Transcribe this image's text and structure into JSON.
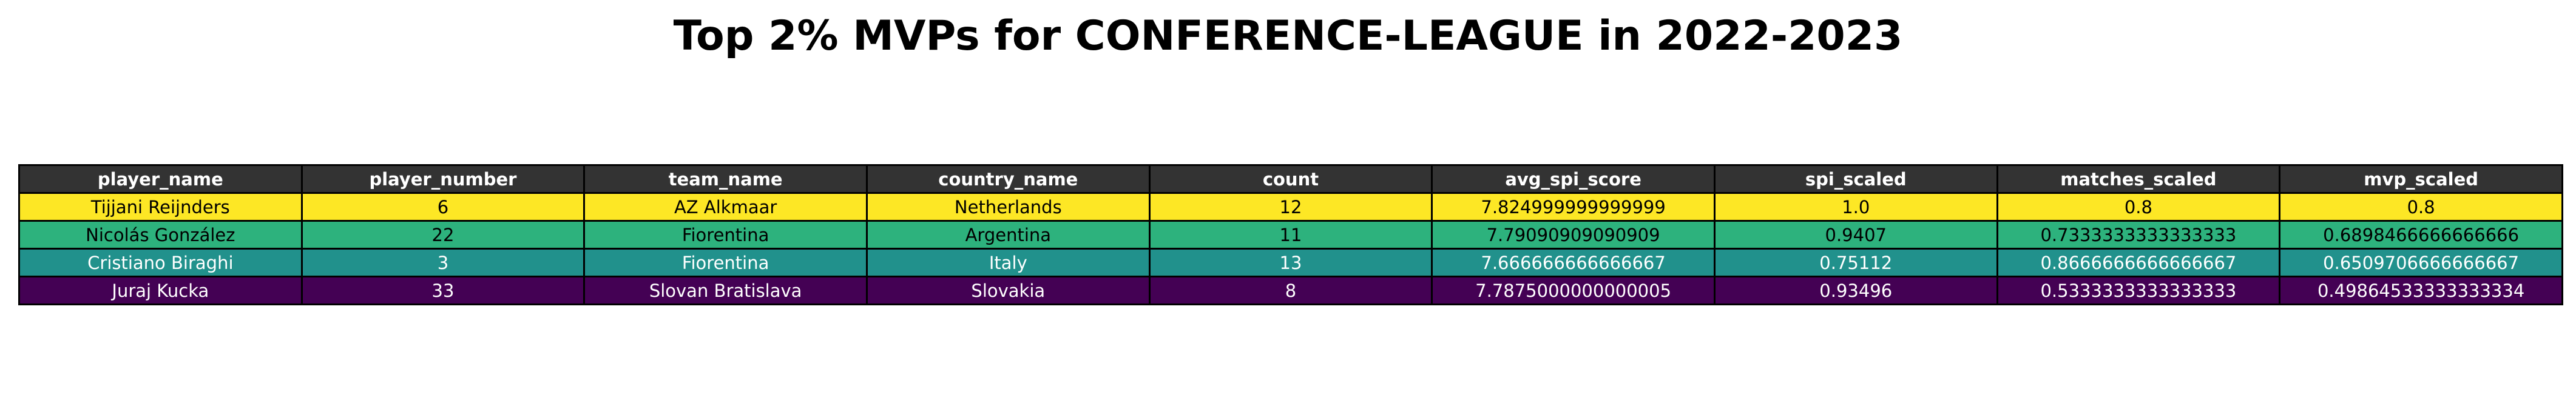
{
  "chart_data": {
    "type": "table",
    "title": "Top 2% MVPs for CONFERENCE-LEAGUE in 2022-2023",
    "columns": [
      "player_name",
      "player_number",
      "team_name",
      "country_name",
      "count",
      "avg_spi_score",
      "spi_scaled",
      "matches_scaled",
      "mvp_scaled"
    ],
    "rows": [
      {
        "cells": [
          "Tijjani Reijnders",
          "6",
          "AZ Alkmaar",
          "Netherlands",
          "12",
          "7.824999999999999",
          "1.0",
          "0.8",
          "0.8"
        ],
        "bg": "#fde725",
        "fg": "#000000"
      },
      {
        "cells": [
          "Nicolás González",
          "22",
          "Fiorentina",
          "Argentina",
          "11",
          "7.79090909090909",
          "0.9407",
          "0.7333333333333333",
          "0.6898466666666666"
        ],
        "bg": "#2db27d",
        "fg": "#000000"
      },
      {
        "cells": [
          "Cristiano Biraghi",
          "3",
          "Fiorentina",
          "Italy",
          "13",
          "7.666666666666667",
          "0.75112",
          "0.8666666666666667",
          "0.6509706666666667"
        ],
        "bg": "#21918c",
        "fg": "#ffffff"
      },
      {
        "cells": [
          "Juraj Kucka",
          "33",
          "Slovan Bratislava",
          "Slovakia",
          "8",
          "7.7875000000000005",
          "0.93496",
          "0.5333333333333333",
          "0.49864533333333334"
        ],
        "bg": "#440154",
        "fg": "#ffffff"
      }
    ],
    "header_bg": "#333333",
    "header_fg": "#ffffff"
  }
}
